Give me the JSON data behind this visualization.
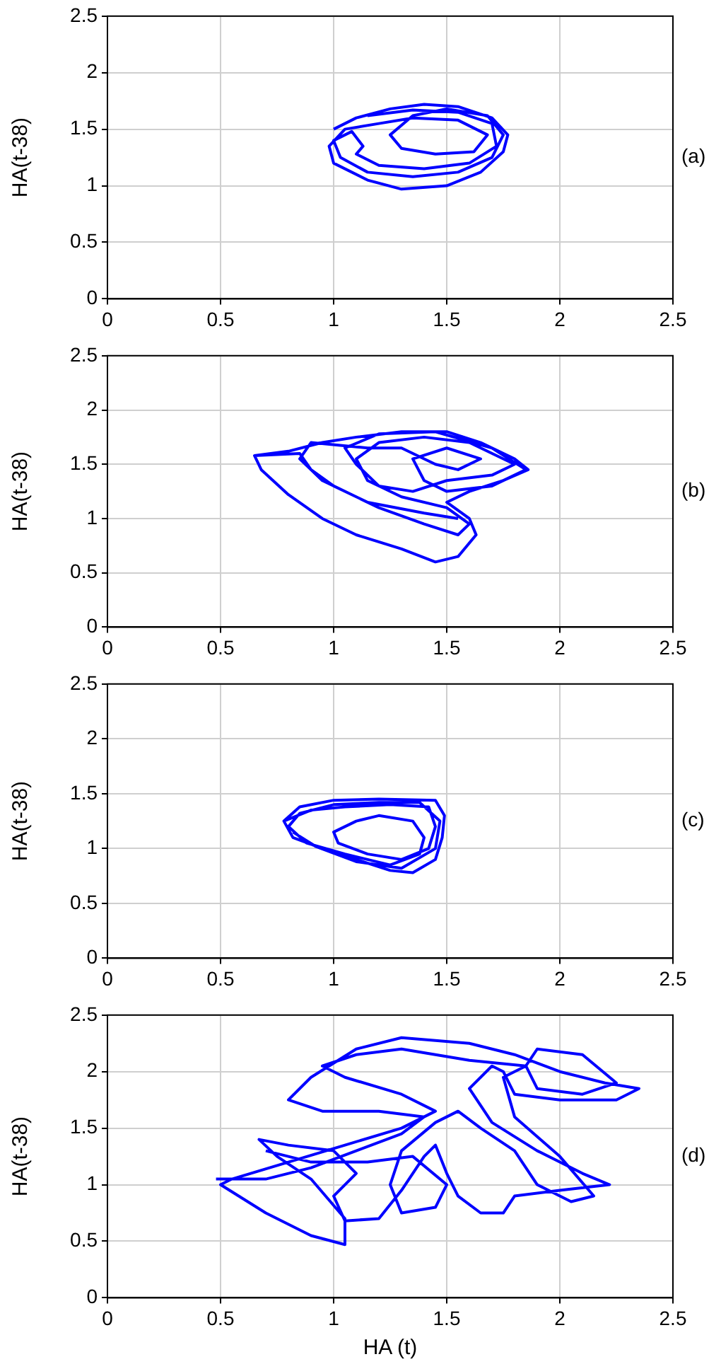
{
  "chart_data": [
    {
      "type": "line",
      "ylabel": "HA(t-38)",
      "annotations": [
        "(a)"
      ],
      "xlim": [
        0,
        2.5
      ],
      "ylim": [
        0,
        2.5
      ],
      "xticks": [
        0,
        0.5,
        1,
        1.5,
        2,
        2.5
      ],
      "yticks": [
        0,
        0.5,
        1,
        1.5,
        2,
        2.5
      ],
      "grid": true,
      "legend": false,
      "line_style": "solid",
      "series": [
        {
          "color": "#0000ff",
          "x": [
            1.0,
            1.1,
            1.25,
            1.4,
            1.55,
            1.7,
            1.77,
            1.75,
            1.65,
            1.5,
            1.3,
            1.15,
            1.0,
            0.98,
            1.05,
            1.2,
            1.35,
            1.55,
            1.68,
            1.62,
            1.45,
            1.3,
            1.25,
            1.35,
            1.5,
            1.68,
            1.75,
            1.7,
            1.55,
            1.35,
            1.15,
            1.03,
            1.0,
            1.08,
            1.13,
            1.1,
            1.2,
            1.4,
            1.6,
            1.72,
            1.7,
            1.55,
            1.35,
            1.15
          ],
          "values": [
            1.5,
            1.6,
            1.68,
            1.72,
            1.7,
            1.6,
            1.45,
            1.3,
            1.12,
            1.0,
            0.97,
            1.05,
            1.2,
            1.35,
            1.5,
            1.55,
            1.6,
            1.58,
            1.45,
            1.3,
            1.28,
            1.33,
            1.45,
            1.62,
            1.68,
            1.62,
            1.45,
            1.25,
            1.12,
            1.08,
            1.12,
            1.25,
            1.4,
            1.48,
            1.35,
            1.28,
            1.18,
            1.15,
            1.2,
            1.35,
            1.55,
            1.65,
            1.67,
            1.62
          ]
        }
      ]
    },
    {
      "type": "line",
      "ylabel": "HA(t-38)",
      "annotations": [
        "(b)"
      ],
      "xlim": [
        0,
        2.5
      ],
      "ylim": [
        0,
        2.5
      ],
      "xticks": [
        0,
        0.5,
        1,
        1.5,
        2,
        2.5
      ],
      "yticks": [
        0,
        0.5,
        1,
        1.5,
        2,
        2.5
      ],
      "grid": true,
      "legend": false,
      "line_style": "solid",
      "series": [
        {
          "color": "#0000ff",
          "x": [
            0.65,
            0.8,
            0.95,
            1.1,
            1.3,
            1.5,
            1.65,
            1.8,
            1.86,
            1.75,
            1.6,
            1.5,
            1.6,
            1.63,
            1.55,
            1.45,
            1.3,
            1.1,
            0.95,
            0.8,
            0.68,
            0.65,
            0.85,
            0.9,
            1.0,
            1.2,
            1.4,
            1.55,
            1.6,
            1.5,
            1.3,
            1.15,
            1.1,
            1.2,
            1.4,
            1.6,
            1.8,
            1.7,
            1.5,
            1.35,
            1.2,
            1.1,
            1.05,
            1.2,
            1.45,
            1.7,
            1.85,
            1.7,
            1.5,
            1.4,
            1.35,
            1.5,
            1.65,
            1.55,
            1.45,
            1.3,
            1.15,
            0.9,
            0.85,
            0.95,
            1.15,
            1.4,
            1.55
          ],
          "values": [
            1.58,
            1.62,
            1.7,
            1.75,
            1.8,
            1.8,
            1.7,
            1.55,
            1.45,
            1.35,
            1.25,
            1.15,
            1.0,
            0.85,
            0.65,
            0.6,
            0.72,
            0.85,
            1.0,
            1.22,
            1.45,
            1.58,
            1.6,
            1.45,
            1.3,
            1.1,
            0.95,
            0.85,
            0.95,
            1.1,
            1.2,
            1.35,
            1.55,
            1.7,
            1.75,
            1.7,
            1.5,
            1.4,
            1.35,
            1.25,
            1.3,
            1.5,
            1.65,
            1.78,
            1.8,
            1.65,
            1.45,
            1.3,
            1.25,
            1.35,
            1.55,
            1.65,
            1.55,
            1.45,
            1.5,
            1.65,
            1.65,
            1.7,
            1.55,
            1.35,
            1.15,
            1.05,
            1.0
          ]
        }
      ]
    },
    {
      "type": "line",
      "ylabel": "HA(t-38)",
      "annotations": [
        "(c)"
      ],
      "xlim": [
        0,
        2.5
      ],
      "ylim": [
        0,
        2.5
      ],
      "xticks": [
        0,
        0.5,
        1,
        1.5,
        2,
        2.5
      ],
      "yticks": [
        0,
        0.5,
        1,
        1.5,
        2,
        2.5
      ],
      "grid": true,
      "legend": false,
      "line_style": "solid",
      "series": [
        {
          "color": "#0000ff",
          "x": [
            0.78,
            0.85,
            1.0,
            1.2,
            1.45,
            1.49,
            1.48,
            1.45,
            1.35,
            1.25,
            1.1,
            0.95,
            0.82,
            0.78,
            0.9,
            1.05,
            1.25,
            1.42,
            1.45,
            1.42,
            1.3,
            1.15,
            1.02,
            1.0,
            1.1,
            1.2,
            1.35,
            1.4,
            1.38,
            1.25,
            1.05,
            0.88,
            0.8,
            0.85,
            1.0,
            1.2,
            1.38,
            1.47,
            1.45,
            1.3,
            1.1,
            0.92,
            0.82
          ],
          "values": [
            1.25,
            1.38,
            1.44,
            1.45,
            1.44,
            1.3,
            1.1,
            0.9,
            0.78,
            0.8,
            0.9,
            1.0,
            1.1,
            1.25,
            1.35,
            1.38,
            1.4,
            1.38,
            1.2,
            1.0,
            0.9,
            0.95,
            1.05,
            1.15,
            1.25,
            1.3,
            1.25,
            1.1,
            0.95,
            0.85,
            0.95,
            1.05,
            1.2,
            1.32,
            1.4,
            1.42,
            1.42,
            1.25,
            1.0,
            0.82,
            0.88,
            1.02,
            1.15
          ]
        }
      ]
    },
    {
      "type": "line",
      "xlabel": "HA (t)",
      "ylabel": "HA(t-38)",
      "annotations": [
        "(d)"
      ],
      "xlim": [
        0,
        2.5
      ],
      "ylim": [
        0,
        2.5
      ],
      "xticks": [
        0,
        0.5,
        1,
        1.5,
        2,
        2.5
      ],
      "yticks": [
        0,
        0.5,
        1,
        1.5,
        2,
        2.5
      ],
      "grid": true,
      "legend": false,
      "line_style": "solid",
      "series": [
        {
          "color": "#0000ff",
          "x": [
            0.48,
            0.7,
            0.9,
            1.1,
            1.3,
            1.4,
            1.2,
            0.95,
            0.8,
            0.9,
            1.1,
            1.3,
            1.6,
            1.8,
            2.0,
            2.2,
            2.35,
            2.25,
            2.0,
            1.8,
            1.75,
            1.7,
            1.6,
            1.7,
            1.9,
            2.1,
            2.22,
            2.0,
            1.8,
            1.75,
            1.65,
            1.55,
            1.5,
            1.45,
            1.4,
            1.3,
            1.2,
            1.05,
            1.0,
            1.1,
            1.0,
            0.8,
            0.67,
            0.75,
            0.9,
            1.05,
            1.05,
            0.9,
            0.7,
            0.5,
            0.55,
            0.8,
            1.05,
            1.3,
            1.45,
            1.3,
            1.05,
            0.95,
            1.1,
            1.3,
            1.6,
            1.85,
            1.9,
            2.1,
            2.25,
            2.1,
            1.9,
            1.85,
            1.75,
            1.8,
            2.0,
            2.15,
            2.05,
            1.9,
            1.8,
            1.65,
            1.55,
            1.45,
            1.3,
            1.25,
            1.3,
            1.45,
            1.5,
            1.35,
            1.15,
            0.9,
            0.7
          ],
          "values": [
            1.05,
            1.05,
            1.15,
            1.3,
            1.45,
            1.6,
            1.65,
            1.65,
            1.75,
            1.95,
            2.2,
            2.3,
            2.25,
            2.15,
            2.0,
            1.9,
            1.85,
            1.75,
            1.75,
            1.8,
            2.0,
            2.05,
            1.85,
            1.55,
            1.3,
            1.1,
            1.0,
            0.95,
            0.9,
            0.75,
            0.75,
            0.9,
            1.1,
            1.35,
            1.25,
            0.95,
            0.7,
            0.68,
            0.9,
            1.1,
            1.3,
            1.35,
            1.4,
            1.25,
            1.05,
            0.7,
            0.47,
            0.55,
            0.75,
            1.0,
            1.05,
            1.2,
            1.35,
            1.5,
            1.65,
            1.8,
            1.95,
            2.05,
            2.15,
            2.2,
            2.1,
            2.05,
            2.2,
            2.15,
            1.9,
            1.8,
            1.85,
            2.05,
            1.95,
            1.6,
            1.25,
            0.9,
            0.85,
            1.0,
            1.3,
            1.5,
            1.65,
            1.55,
            1.3,
            1.0,
            0.75,
            0.8,
            1.0,
            1.25,
            1.2,
            1.2,
            1.3
          ]
        }
      ]
    }
  ]
}
